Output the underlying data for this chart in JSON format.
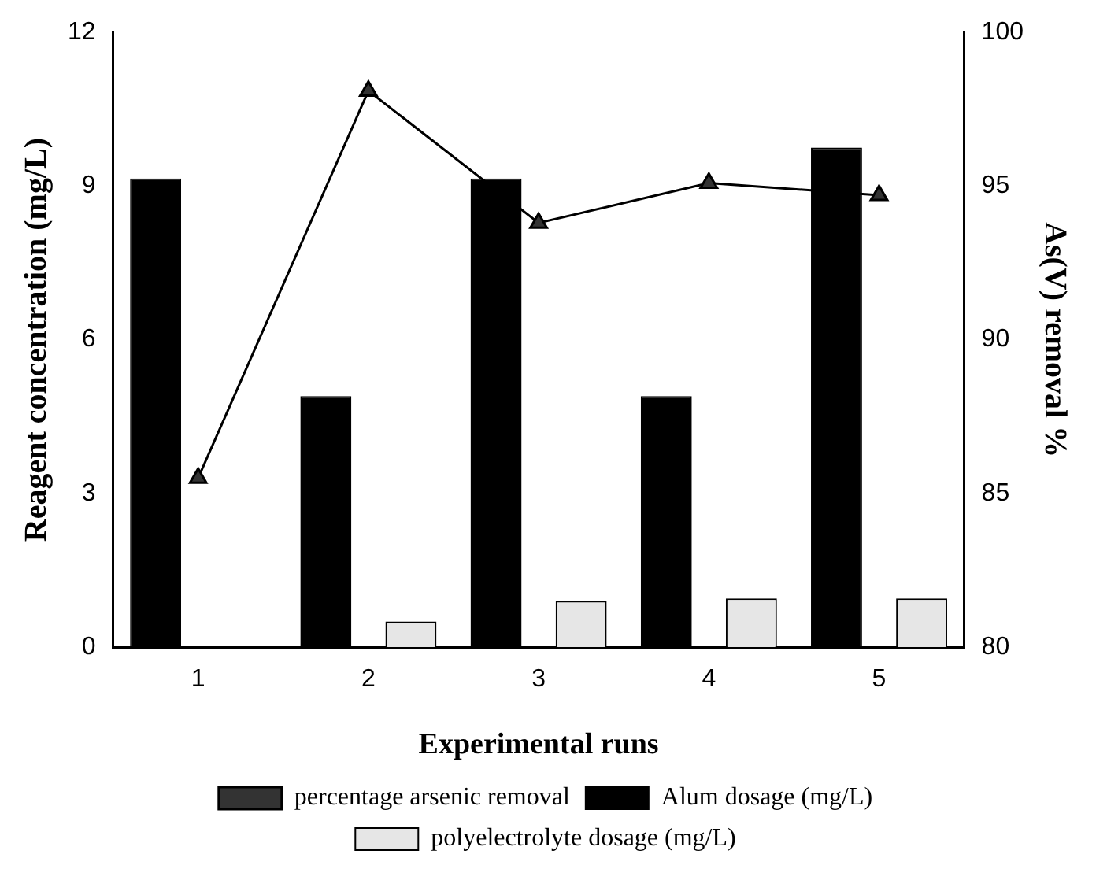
{
  "chart_data": {
    "type": "bar",
    "xlabel": "Experimental runs",
    "ylabel": "Reagent concentration (mg/L)",
    "y2label": "As(V) removal %",
    "categories": [
      "1",
      "2",
      "3",
      "4",
      "5"
    ],
    "series": [
      {
        "name": "Alum dosage (mg/L)",
        "color": "#000000",
        "values": [
          9.15,
          4.9,
          9.15,
          4.9,
          9.75
        ]
      },
      {
        "name": "polyelectrolyte dosage (mg/L)",
        "color": "#e6e6e6",
        "values": [
          0,
          0.5,
          0.9,
          0.95,
          0.95
        ]
      },
      {
        "name": "percentage arsenic removal",
        "type": "line",
        "axis": "y2",
        "color": "#000000",
        "marker": "triangle",
        "values": [
          85.5,
          98.1,
          93.8,
          95.1,
          94.7
        ]
      }
    ],
    "ylim": [
      0,
      12
    ],
    "yticks": [
      0,
      3,
      6,
      9,
      12
    ],
    "y2lim": [
      80,
      100
    ],
    "y2ticks": [
      80,
      85,
      90,
      95,
      100
    ],
    "grid": false,
    "legend": "bottom"
  }
}
